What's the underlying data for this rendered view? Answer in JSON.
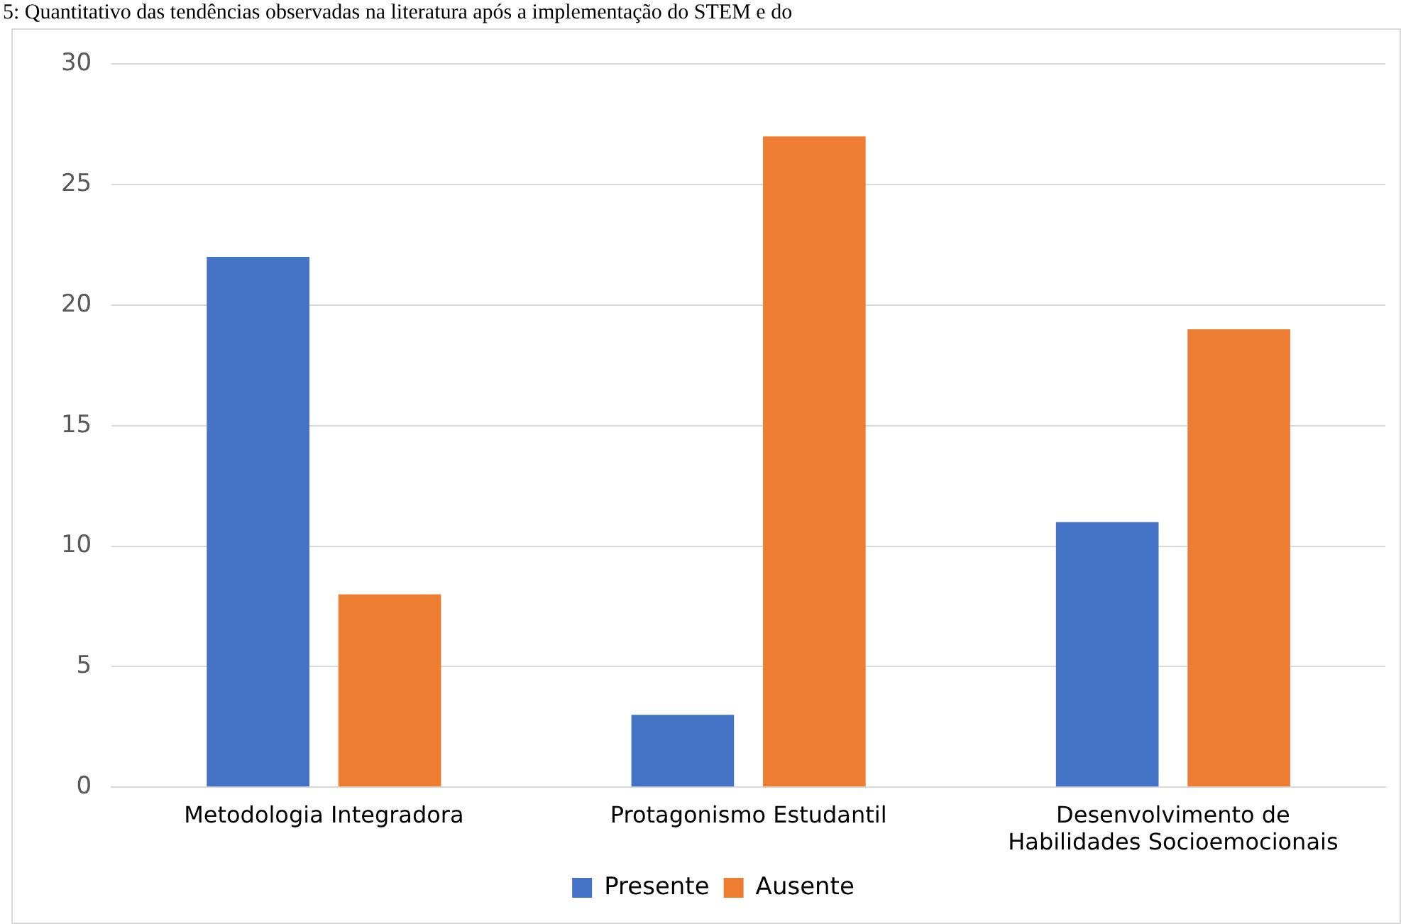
{
  "chart_data": {
    "type": "bar",
    "title": "5: Quantitativo das tendências observadas na literatura após a implementação do STEM e do",
    "categories": [
      [
        "Metodologia Integradora"
      ],
      [
        "Protagonismo Estudantil"
      ],
      [
        "Desenvolvimento de",
        "Habilidades Socioemocionais"
      ]
    ],
    "series": [
      {
        "name": "Presente",
        "color": "#4472c4",
        "values": [
          22,
          3,
          11
        ]
      },
      {
        "name": "Ausente",
        "color": "#ed7d31",
        "values": [
          8,
          27,
          19
        ]
      }
    ],
    "ylim": [
      0,
      30
    ],
    "yticks": [
      0,
      5,
      10,
      15,
      20,
      25,
      30
    ],
    "grid": "y",
    "legend": "bottom"
  }
}
